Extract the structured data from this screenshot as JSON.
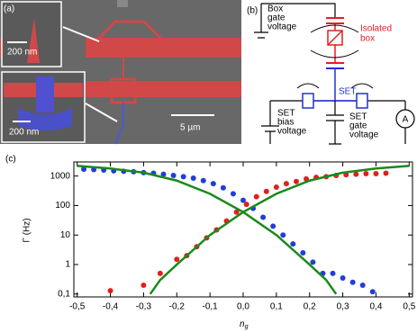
{
  "panel_a": {
    "label": "(a)",
    "scale_top": "200 nm",
    "scale_bottom": "200 nm",
    "scale_main": "5 µm"
  },
  "panel_b": {
    "label": "(b)",
    "box_gate": [
      "Box",
      "gate",
      "voltage"
    ],
    "isolated_box": [
      "Isolated",
      "box"
    ],
    "set_bias": [
      "SET",
      "bias",
      "voltage"
    ],
    "set": "SET",
    "set_gate": [
      "SET",
      "gate",
      "voltage"
    ],
    "ammeter": "A"
  },
  "chart_data": {
    "type": "scatter",
    "panel_label": "(c)",
    "ylabel": "Γ (Hz)",
    "xlabel": "n",
    "xlabel_sub": "g",
    "xlim": [
      -0.51,
      0.51
    ],
    "ylim": [
      0.08,
      3000
    ],
    "yscale": "log",
    "xticks": [
      {
        "value": -0.5,
        "label": "-0,5"
      },
      {
        "value": -0.4,
        "label": "-0,4"
      },
      {
        "value": -0.3,
        "label": "-0,3"
      },
      {
        "value": -0.2,
        "label": "-0,2"
      },
      {
        "value": -0.1,
        "label": "-0,1"
      },
      {
        "value": 0,
        "label": "0,0"
      },
      {
        "value": 0.1,
        "label": "0,1"
      },
      {
        "value": 0.2,
        "label": "0,2"
      },
      {
        "value": 0.3,
        "label": "0,3"
      },
      {
        "value": 0.4,
        "label": "0,4"
      },
      {
        "value": 0.5,
        "label": "0,5"
      }
    ],
    "yticks": [
      {
        "value": 0.1,
        "label": "0,1"
      },
      1,
      10,
      100,
      1000
    ],
    "series": [
      {
        "style": "markers",
        "color": "#1f3fd6",
        "x": [
          -0.48,
          -0.45,
          -0.42,
          -0.39,
          -0.36,
          -0.33,
          -0.3,
          -0.27,
          -0.24,
          -0.21,
          -0.18,
          -0.15,
          -0.12,
          -0.09,
          -0.06,
          -0.03,
          0,
          0.03,
          0.06,
          0.09,
          0.12,
          0.15,
          0.18,
          0.21,
          0.24,
          0.27,
          0.3,
          0.33,
          0.36,
          0.39
        ],
        "values": [
          1700,
          1650,
          1600,
          1500,
          1450,
          1400,
          1300,
          1250,
          1150,
          1050,
          950,
          850,
          700,
          550,
          400,
          250,
          150,
          80,
          40,
          20,
          10,
          5,
          2.5,
          1.2,
          0.5,
          0.5,
          0.35,
          0.25,
          0.2,
          0.12
        ]
      },
      {
        "style": "markers",
        "color": "#e0201c",
        "x": [
          -0.4,
          -0.3,
          -0.25,
          -0.2,
          -0.17,
          -0.14,
          -0.11,
          -0.08,
          -0.05,
          -0.02,
          0.01,
          0.04,
          0.07,
          0.1,
          0.13,
          0.16,
          0.19,
          0.22,
          0.25,
          0.28,
          0.31,
          0.34,
          0.37,
          0.4,
          0.43
        ],
        "values": [
          0.13,
          0.2,
          0.5,
          1.5,
          2,
          4,
          8,
          15,
          30,
          60,
          110,
          200,
          300,
          420,
          550,
          650,
          800,
          900,
          950,
          1050,
          1100,
          1150,
          1200,
          1200,
          1250
        ]
      },
      {
        "style": "line",
        "color": "#1a8a1a",
        "x": [
          -0.5,
          -0.4,
          -0.3,
          -0.2,
          -0.1,
          0,
          0.1,
          0.2,
          0.25,
          0.28
        ],
        "values": [
          2200,
          1800,
          1300,
          700,
          250,
          60,
          10,
          1,
          0.3,
          0.1
        ]
      },
      {
        "style": "line",
        "color": "#1a8a1a",
        "x": [
          -0.28,
          -0.25,
          -0.2,
          -0.1,
          0,
          0.1,
          0.2,
          0.3,
          0.4,
          0.5
        ],
        "values": [
          0.1,
          0.3,
          1,
          10,
          60,
          250,
          700,
          1300,
          1800,
          2200
        ]
      }
    ]
  }
}
